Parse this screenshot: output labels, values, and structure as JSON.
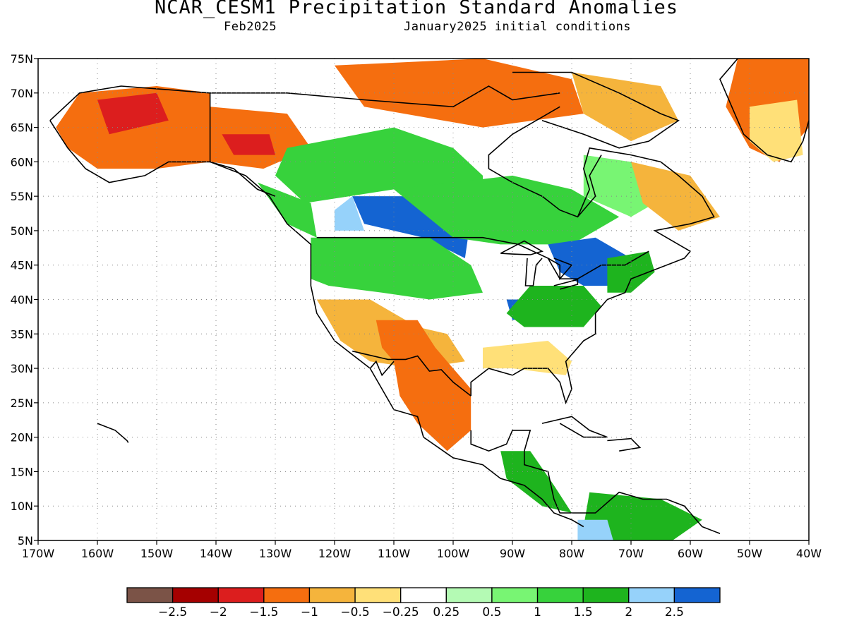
{
  "title": "NCAR_CESM1 Precipitation Standard Anomalies",
  "subtitle_left": "Feb2025",
  "subtitle_right": "January2025 initial conditions",
  "map": {
    "lon_range": [
      -170,
      -40
    ],
    "lat_range": [
      5,
      75
    ],
    "lon_ticks": [
      {
        "value": -170,
        "label": "170W"
      },
      {
        "value": -160,
        "label": "160W"
      },
      {
        "value": -150,
        "label": "150W"
      },
      {
        "value": -140,
        "label": "140W"
      },
      {
        "value": -130,
        "label": "130W"
      },
      {
        "value": -120,
        "label": "120W"
      },
      {
        "value": -110,
        "label": "110W"
      },
      {
        "value": -100,
        "label": "100W"
      },
      {
        "value": -90,
        "label": "90W"
      },
      {
        "value": -80,
        "label": "80W"
      },
      {
        "value": -70,
        "label": "70W"
      },
      {
        "value": -60,
        "label": "60W"
      },
      {
        "value": -50,
        "label": "50W"
      },
      {
        "value": -40,
        "label": "40W"
      }
    ],
    "lat_ticks": [
      {
        "value": 75,
        "label": "75N"
      },
      {
        "value": 70,
        "label": "70N"
      },
      {
        "value": 65,
        "label": "65N"
      },
      {
        "value": 60,
        "label": "60N"
      },
      {
        "value": 55,
        "label": "55N"
      },
      {
        "value": 50,
        "label": "50N"
      },
      {
        "value": 45,
        "label": "45N"
      },
      {
        "value": 40,
        "label": "40N"
      },
      {
        "value": 35,
        "label": "35N"
      },
      {
        "value": 30,
        "label": "30N"
      },
      {
        "value": 25,
        "label": "25N"
      },
      {
        "value": 20,
        "label": "20N"
      },
      {
        "value": 15,
        "label": "15N"
      },
      {
        "value": 10,
        "label": "10N"
      },
      {
        "value": 5,
        "label": "5N"
      }
    ],
    "grid": true,
    "anomaly_regions": [
      {
        "name": "alaska",
        "level": -1.5,
        "points": [
          [
            -167,
            65
          ],
          [
            -163,
            70
          ],
          [
            -150,
            71
          ],
          [
            -141,
            70
          ],
          [
            -141,
            60
          ],
          [
            -150,
            59
          ],
          [
            -160,
            59
          ],
          [
            -165,
            62
          ]
        ]
      },
      {
        "name": "alaska-core",
        "level": -2,
        "points": [
          [
            -160,
            69
          ],
          [
            -150,
            70
          ],
          [
            -148,
            66
          ],
          [
            -158,
            64
          ]
        ]
      },
      {
        "name": "yukon",
        "level": -1.5,
        "points": [
          [
            -141,
            68
          ],
          [
            -128,
            67
          ],
          [
            -124,
            62
          ],
          [
            -132,
            59
          ],
          [
            -141,
            60
          ]
        ]
      },
      {
        "name": "yukon-core",
        "level": -2,
        "points": [
          [
            -139,
            64
          ],
          [
            -131,
            64
          ],
          [
            -130,
            61
          ],
          [
            -137,
            61
          ]
        ]
      },
      {
        "name": "nw-canada-green",
        "level": 1,
        "points": [
          [
            -128,
            62
          ],
          [
            -110,
            65
          ],
          [
            -100,
            62
          ],
          [
            -95,
            58
          ],
          [
            -95,
            55
          ],
          [
            -110,
            56
          ],
          [
            -125,
            54
          ],
          [
            -130,
            58
          ]
        ]
      },
      {
        "name": "bc-coast",
        "level": 1,
        "points": [
          [
            -133,
            57
          ],
          [
            -124,
            54
          ],
          [
            -123,
            49
          ],
          [
            -128,
            51
          ]
        ]
      },
      {
        "name": "prairie-blue",
        "level": 2.5,
        "points": [
          [
            -117,
            55
          ],
          [
            -105,
            55
          ],
          [
            -97,
            52
          ],
          [
            -98,
            46
          ],
          [
            -105,
            49
          ],
          [
            -115,
            51
          ]
        ]
      },
      {
        "name": "prairie-lightblue",
        "level": 2,
        "points": [
          [
            -120,
            53
          ],
          [
            -117,
            55
          ],
          [
            -115,
            50
          ],
          [
            -120,
            50
          ]
        ]
      },
      {
        "name": "canadian-shield",
        "level": 1,
        "points": [
          [
            -110,
            56
          ],
          [
            -90,
            58
          ],
          [
            -80,
            56
          ],
          [
            -72,
            52
          ],
          [
            -80,
            48
          ],
          [
            -92,
            48
          ],
          [
            -100,
            49
          ]
        ]
      },
      {
        "name": "hudson-bay-east",
        "level": 0.5,
        "points": [
          [
            -78,
            61
          ],
          [
            -70,
            60
          ],
          [
            -64,
            55
          ],
          [
            -70,
            52
          ],
          [
            -78,
            55
          ]
        ]
      },
      {
        "name": "nw-usa",
        "level": 1,
        "points": [
          [
            -124,
            49
          ],
          [
            -104,
            49
          ],
          [
            -97,
            45
          ],
          [
            -95,
            41
          ],
          [
            -104,
            40
          ],
          [
            -112,
            41
          ],
          [
            -121,
            42
          ],
          [
            -124,
            43
          ]
        ]
      },
      {
        "name": "great-lakes-east",
        "level": 2.5,
        "points": [
          [
            -84,
            48
          ],
          [
            -76,
            49
          ],
          [
            -70,
            46
          ],
          [
            -70,
            42
          ],
          [
            -78,
            42
          ],
          [
            -82,
            44
          ]
        ]
      },
      {
        "name": "ohio-valley",
        "level": 2.5,
        "points": [
          [
            -91,
            40
          ],
          [
            -85,
            40
          ],
          [
            -83,
            38
          ],
          [
            -90,
            37
          ]
        ]
      },
      {
        "name": "mid-atlantic",
        "level": 1.5,
        "points": [
          [
            -87,
            42
          ],
          [
            -78,
            42
          ],
          [
            -75,
            39
          ],
          [
            -78,
            36
          ],
          [
            -88,
            36
          ],
          [
            -91,
            38
          ]
        ]
      },
      {
        "name": "northeast",
        "level": 1.5,
        "points": [
          [
            -74,
            46
          ],
          [
            -67,
            47
          ],
          [
            -66,
            44
          ],
          [
            -70,
            41
          ],
          [
            -74,
            41
          ]
        ]
      },
      {
        "name": "southwest",
        "level": -1,
        "points": [
          [
            -123,
            40
          ],
          [
            -114,
            40
          ],
          [
            -106,
            36
          ],
          [
            -101,
            35
          ],
          [
            -98,
            31
          ],
          [
            -106,
            30
          ],
          [
            -114,
            31
          ],
          [
            -119,
            34
          ]
        ]
      },
      {
        "name": "southwest-core",
        "level": -1.5,
        "points": [
          [
            -113,
            37
          ],
          [
            -106,
            37
          ],
          [
            -103,
            33
          ],
          [
            -100,
            30
          ],
          [
            -104,
            28
          ],
          [
            -109,
            30
          ],
          [
            -112,
            33
          ]
        ]
      },
      {
        "name": "mexico",
        "level": -1.5,
        "points": [
          [
            -110,
            31
          ],
          [
            -100,
            30
          ],
          [
            -97,
            27
          ],
          [
            -97,
            21
          ],
          [
            -101,
            18
          ],
          [
            -106,
            22
          ],
          [
            -109,
            26
          ]
        ]
      },
      {
        "name": "gulf-coast",
        "level": -0.5,
        "points": [
          [
            -95,
            33
          ],
          [
            -84,
            34
          ],
          [
            -80,
            31
          ],
          [
            -81,
            29
          ],
          [
            -90,
            30
          ],
          [
            -95,
            30
          ]
        ]
      },
      {
        "name": "central-america",
        "level": 1.5,
        "points": [
          [
            -92,
            18
          ],
          [
            -87,
            18
          ],
          [
            -83,
            13
          ],
          [
            -80,
            9
          ],
          [
            -85,
            10
          ],
          [
            -91,
            14
          ]
        ]
      },
      {
        "name": "colombia-venezuela",
        "level": 1.5,
        "points": [
          [
            -77,
            12
          ],
          [
            -65,
            11
          ],
          [
            -58,
            8
          ],
          [
            -63,
            5
          ],
          [
            -74,
            5
          ],
          [
            -78,
            7
          ]
        ]
      },
      {
        "name": "colombia-pacific",
        "level": 2,
        "points": [
          [
            -79,
            8
          ],
          [
            -74,
            8
          ],
          [
            -73,
            5
          ],
          [
            -79,
            5
          ]
        ]
      },
      {
        "name": "arctic-islands",
        "level": -1.5,
        "points": [
          [
            -120,
            74
          ],
          [
            -95,
            75
          ],
          [
            -80,
            72
          ],
          [
            -78,
            67
          ],
          [
            -95,
            65
          ],
          [
            -115,
            68
          ]
        ]
      },
      {
        "name": "baffin",
        "level": -1,
        "points": [
          [
            -80,
            73
          ],
          [
            -65,
            71
          ],
          [
            -62,
            66
          ],
          [
            -70,
            63
          ],
          [
            -78,
            67
          ]
        ]
      },
      {
        "name": "labrador",
        "level": -1,
        "points": [
          [
            -70,
            60
          ],
          [
            -60,
            58
          ],
          [
            -55,
            52
          ],
          [
            -62,
            50
          ],
          [
            -68,
            54
          ]
        ]
      },
      {
        "name": "greenland",
        "level": -1.5,
        "points": [
          [
            -52,
            75
          ],
          [
            -40,
            75
          ],
          [
            -40,
            65
          ],
          [
            -45,
            60
          ],
          [
            -50,
            62
          ],
          [
            -54,
            68
          ]
        ]
      },
      {
        "name": "greenland-south",
        "level": -0.5,
        "points": [
          [
            -50,
            68
          ],
          [
            -42,
            69
          ],
          [
            -41,
            61
          ],
          [
            -46,
            60
          ],
          [
            -50,
            63
          ]
        ]
      }
    ]
  },
  "colorbar": {
    "colors": [
      "#7b5347",
      "#a50000",
      "#dc1e1e",
      "#f56e0f",
      "#f5b43c",
      "#ffe078",
      "#ffffff",
      "#b4fab4",
      "#78f573",
      "#37d23c",
      "#1eb41e",
      "#96d2fa",
      "#1464d2"
    ],
    "labels": [
      "−2.5",
      "−2",
      "−1.5",
      "−1",
      "−0.5",
      "−0.25",
      "0.25",
      "0.5",
      "1",
      "1.5",
      "2",
      "2.5"
    ],
    "label_values": [
      -2.5,
      -2,
      -1.5,
      -1,
      -0.5,
      -0.25,
      0.25,
      0.5,
      1,
      1.5,
      2,
      2.5
    ]
  }
}
